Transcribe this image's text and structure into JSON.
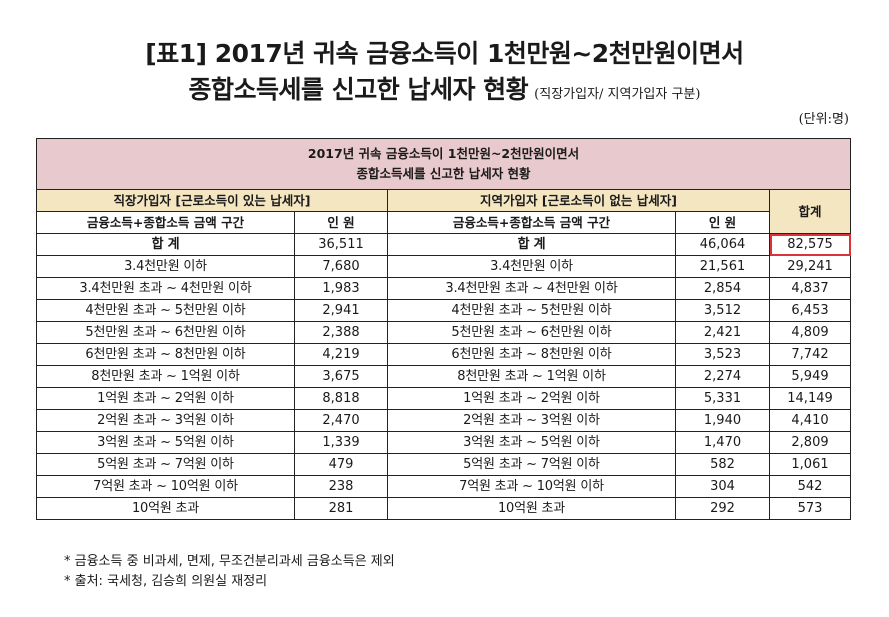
{
  "title": {
    "line1": "[표1] 2017년 귀속 금융소득이 1천만원~2천만원이면서",
    "line2": "종합소득세를 신고한 납세자 현황",
    "subtitle": "(직장가입자/ 지역가입자 구분)"
  },
  "unit": "(단위:명)",
  "table": {
    "header_line1": "2017년 귀속 금융소득이 1천만원~2천만원이면서",
    "header_line2": "종합소득세를 신고한 납세자 현황",
    "group_workplace": "직장가입자 [근로소득이 있는 납세자]",
    "group_regional": "지역가입자 [근로소득이 없는 납세자]",
    "sum_header": "합계",
    "col_range_w": "금융소득+종합소득 금액 구간",
    "col_count_w": "인 원",
    "col_range_r": "금융소득+종합소득 금액 구간",
    "col_count_r": "인 원",
    "rows": [
      {
        "range_w": "합 계",
        "count_w": "36,511",
        "range_r": "합 계",
        "count_r": "46,064",
        "total": "82,575"
      },
      {
        "range_w": "3.4천만원 이하",
        "count_w": "7,680",
        "range_r": "3.4천만원 이하",
        "count_r": "21,561",
        "total": "29,241"
      },
      {
        "range_w": "3.4천만원 초과 ~ 4천만원 이하",
        "count_w": "1,983",
        "range_r": "3.4천만원 초과 ~ 4천만원 이하",
        "count_r": "2,854",
        "total": "4,837"
      },
      {
        "range_w": "4천만원 초과 ~ 5천만원 이하",
        "count_w": "2,941",
        "range_r": "4천만원 초과 ~ 5천만원 이하",
        "count_r": "3,512",
        "total": "6,453"
      },
      {
        "range_w": "5천만원 초과 ~ 6천만원 이하",
        "count_w": "2,388",
        "range_r": "5천만원 초과 ~ 6천만원 이하",
        "count_r": "2,421",
        "total": "4,809"
      },
      {
        "range_w": "6천만원 초과 ~ 8천만원 이하",
        "count_w": "4,219",
        "range_r": "6천만원 초과 ~ 8천만원 이하",
        "count_r": "3,523",
        "total": "7,742"
      },
      {
        "range_w": "8천만원 초과 ~ 1억원 이하",
        "count_w": "3,675",
        "range_r": "8천만원 초과 ~ 1억원 이하",
        "count_r": "2,274",
        "total": "5,949"
      },
      {
        "range_w": "1억원 초과 ~ 2억원 이하",
        "count_w": "8,818",
        "range_r": "1억원 초과 ~ 2억원 이하",
        "count_r": "5,331",
        "total": "14,149"
      },
      {
        "range_w": "2억원 초과 ~ 3억원 이하",
        "count_w": "2,470",
        "range_r": "2억원 초과 ~ 3억원 이하",
        "count_r": "1,940",
        "total": "4,410"
      },
      {
        "range_w": "3억원 초과 ~ 5억원 이하",
        "count_w": "1,339",
        "range_r": "3억원 초과 ~ 5억원 이하",
        "count_r": "1,470",
        "total": "2,809"
      },
      {
        "range_w": "5억원 초과 ~ 7억원 이하",
        "count_w": "479",
        "range_r": "5억원 초과 ~ 7억원 이하",
        "count_r": "582",
        "total": "1,061"
      },
      {
        "range_w": "7억원 초과 ~ 10억원 이하",
        "count_w": "238",
        "range_r": "7억원 초과 ~ 10억원 이하",
        "count_r": "304",
        "total": "542"
      },
      {
        "range_w": "10억원 초과",
        "count_w": "281",
        "range_r": "10억원 초과",
        "count_r": "292",
        "total": "573"
      }
    ]
  },
  "notes": [
    "* 금융소득 중 비과세, 면제, 무조건분리과세 금융소득은 제외",
    "* 출처: 국세청, 김승희 의원실 재정리"
  ],
  "colors": {
    "header_bg": "#e8c9cd",
    "group_bg": "#f5e6c2",
    "highlight_border": "#d9343b"
  }
}
